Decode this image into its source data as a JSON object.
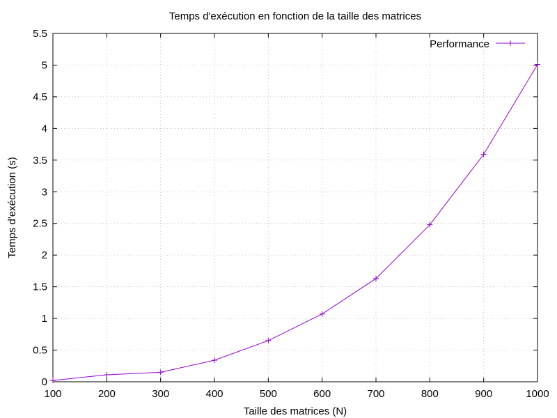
{
  "chart_data": {
    "type": "line",
    "title": "Temps d'exécution en fonction de la taille des matrices",
    "xlabel": "Taille des matrices (N)",
    "ylabel": "Temps d'exécution (s)",
    "xlim": [
      100,
      1000
    ],
    "ylim": [
      0,
      5.5
    ],
    "xticks": [
      "100",
      "200",
      "300",
      "400",
      "500",
      "600",
      "700",
      "800",
      "900",
      "1000"
    ],
    "yticks": [
      "0",
      "0.5",
      "1",
      "1.5",
      "2",
      "2.5",
      "3",
      "3.5",
      "4",
      "4.5",
      "5",
      "5.5"
    ],
    "grid": true,
    "legend_position": "top-right",
    "series": [
      {
        "name": "Performance",
        "color": "#9400d3",
        "marker": "plus",
        "x": [
          100,
          200,
          300,
          400,
          500,
          600,
          700,
          800,
          900,
          1000
        ],
        "y": [
          0.02,
          0.11,
          0.15,
          0.34,
          0.65,
          1.07,
          1.63,
          2.48,
          3.59,
          5.01
        ]
      }
    ]
  }
}
